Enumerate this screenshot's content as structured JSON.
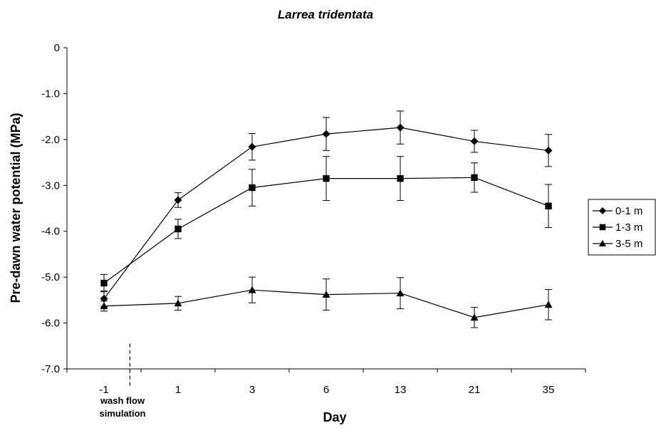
{
  "chart_data": {
    "type": "line",
    "title": "Larrea tridentata",
    "xlabel": "Day",
    "ylabel": "Pre-dawn water potential (MPa)",
    "categories": [
      "-1",
      "1",
      "3",
      "6",
      "13",
      "21",
      "35"
    ],
    "ylim": [
      -7.0,
      0
    ],
    "y_ticks": [
      "0",
      "-1.0",
      "-2.0",
      "-3.0",
      "-4.0",
      "-5.0",
      "-6.0",
      "-7.0"
    ],
    "y_tick_values": [
      0,
      -1,
      -2,
      -3,
      -4,
      -5,
      -6,
      -7
    ],
    "grid": false,
    "legend_position": "right",
    "annotation": {
      "line1": "wash flow",
      "line2": "simulation"
    },
    "series": [
      {
        "name": "0-1 m",
        "marker": "diamond",
        "values": [
          -5.47,
          -3.32,
          -2.16,
          -1.88,
          -1.74,
          -2.04,
          -2.24
        ],
        "errors": [
          0.17,
          0.16,
          0.29,
          0.36,
          0.36,
          0.24,
          0.35
        ]
      },
      {
        "name": "1-3 m",
        "marker": "square",
        "values": [
          -5.13,
          -3.95,
          -3.05,
          -2.85,
          -2.85,
          -2.83,
          -3.45
        ],
        "errors": [
          0.19,
          0.21,
          0.4,
          0.48,
          0.48,
          0.32,
          0.47
        ]
      },
      {
        "name": "3-5 m",
        "marker": "triangle",
        "values": [
          -5.63,
          -5.57,
          -5.28,
          -5.38,
          -5.35,
          -5.88,
          -5.6
        ],
        "errors": [
          0.11,
          0.15,
          0.28,
          0.34,
          0.34,
          0.22,
          0.33
        ]
      }
    ]
  }
}
